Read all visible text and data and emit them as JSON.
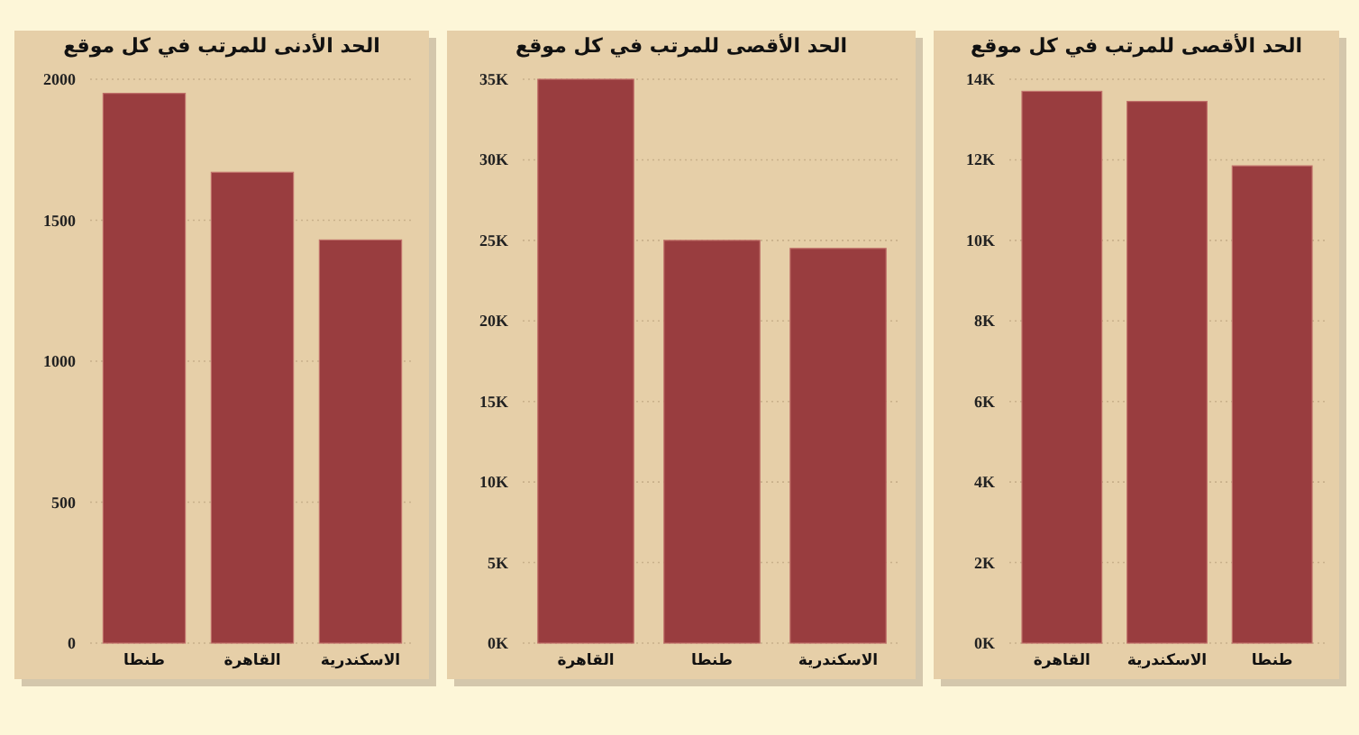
{
  "chart_data": [
    {
      "type": "bar",
      "title": "الحد الأدنى للمرتب في كل موقع",
      "categories": [
        "طنطا",
        "القاهرة",
        "الاسكندرية"
      ],
      "values": [
        1950,
        1670,
        1430
      ],
      "color": "#993d3f",
      "ylim": [
        0,
        2000
      ],
      "yticks": [
        0,
        500,
        1000,
        1500,
        2000
      ],
      "grid": "y"
    },
    {
      "type": "bar",
      "title": "الحد الأقصى للمرتب في كل موقع",
      "categories": [
        "القاهرة",
        "طنطا",
        "الاسكندرية"
      ],
      "values": [
        35000,
        25000,
        24500
      ],
      "color": "#993d3f",
      "ylim": [
        0,
        35000
      ],
      "yticks": [
        {
          "value": 0,
          "label": "0K"
        },
        {
          "value": 5000,
          "label": "5K"
        },
        {
          "value": 10000,
          "label": "10K"
        },
        {
          "value": 15000,
          "label": "15K"
        },
        {
          "value": 20000,
          "label": "20K"
        },
        {
          "value": 25000,
          "label": "25K"
        },
        {
          "value": 30000,
          "label": "30K"
        },
        {
          "value": 35000,
          "label": "35K"
        }
      ],
      "grid": "y"
    },
    {
      "type": "bar",
      "title": "الحد الأقصى للمرتب في كل موقع",
      "categories": [
        "القاهرة",
        "الاسكندرية",
        "طنطا"
      ],
      "values": [
        13700,
        13450,
        11850
      ],
      "color": "#993d3f",
      "ylim": [
        0,
        14000
      ],
      "yticks": [
        {
          "value": 0,
          "label": "0K"
        },
        {
          "value": 2000,
          "label": "2K"
        },
        {
          "value": 4000,
          "label": "4K"
        },
        {
          "value": 6000,
          "label": "6K"
        },
        {
          "value": 8000,
          "label": "8K"
        },
        {
          "value": 10000,
          "label": "10K"
        },
        {
          "value": 12000,
          "label": "12K"
        },
        {
          "value": 14000,
          "label": "14K"
        }
      ],
      "grid": "y"
    }
  ]
}
